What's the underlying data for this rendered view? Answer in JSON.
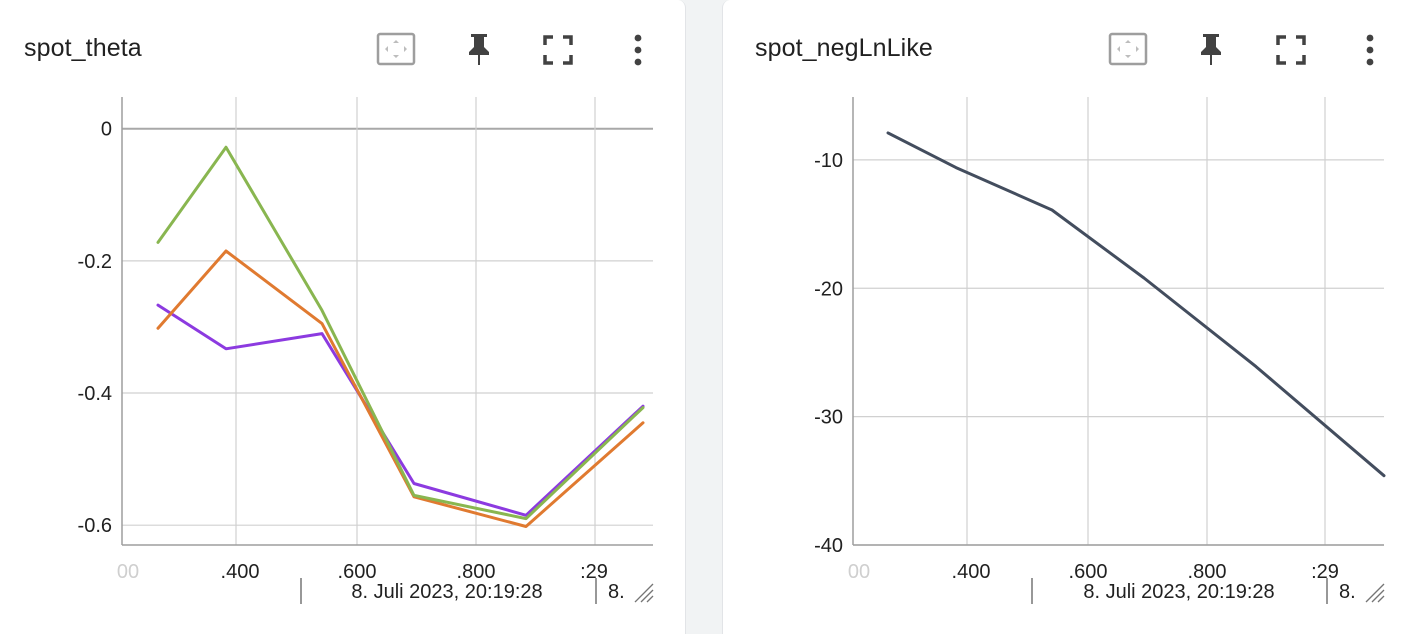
{
  "colors": {
    "grid": "#d0d0d0",
    "axis": "#9e9e9e",
    "zero_line": "#a8a8a8",
    "series_purple": "#8c3ae0",
    "series_orange": "#e07a30",
    "series_green": "#89b650",
    "series_dark": "#434d5e"
  },
  "icons": [
    "fit-domain-icon",
    "pin-icon",
    "fullscreen-icon",
    "more-vert-icon"
  ],
  "cards": [
    {
      "title": "spot_theta"
    },
    {
      "title": "spot_negLnLike"
    }
  ],
  "chart_data": [
    {
      "type": "line",
      "title": "spot_theta",
      "ylim": [
        -0.63,
        0.048
      ],
      "yticks": [
        0,
        -0.2,
        -0.4,
        -0.6
      ],
      "ytick_labels": [
        "0",
        "-0.2",
        "-0.4",
        "-0.6"
      ],
      "xtick_labels": [
        "00",
        ".400",
        ".600",
        ".800",
        ":29"
      ],
      "x_axis_secondary_label": "8. Juli 2023, 20:19:28",
      "x_axis_secondary_label_cut": "8.",
      "grid": true,
      "series": [
        {
          "color": "#8c3ae0",
          "x": [
            1,
            2,
            3,
            4,
            5,
            6
          ],
          "values": [
            -0.267,
            -0.333,
            -0.31,
            -0.537,
            -0.585,
            -0.42
          ]
        },
        {
          "color": "#e07a30",
          "x": [
            1,
            2,
            3,
            4,
            5,
            6
          ],
          "values": [
            -0.302,
            -0.185,
            -0.295,
            -0.557,
            -0.602,
            -0.445
          ]
        },
        {
          "color": "#89b650",
          "x": [
            1,
            2,
            3,
            4,
            5,
            6
          ],
          "values": [
            -0.172,
            -0.028,
            -0.275,
            -0.555,
            -0.59,
            -0.422
          ]
        }
      ]
    },
    {
      "type": "line",
      "title": "spot_negLnLike",
      "ylim": [
        -40,
        -5.1
      ],
      "yticks": [
        -10,
        -20,
        -30,
        -40
      ],
      "ytick_labels": [
        "-10",
        "-20",
        "-30",
        "-40"
      ],
      "xtick_labels": [
        "00",
        ".400",
        ".600",
        ".800",
        ":29"
      ],
      "x_axis_secondary_label": "8. Juli 2023, 20:19:28",
      "x_axis_secondary_label_cut": "8.",
      "grid": true,
      "series": [
        {
          "color": "#434d5e",
          "x": [
            1,
            2,
            3,
            4,
            5,
            6
          ],
          "values": [
            -7.9,
            -10.6,
            -13.9,
            -19.2,
            -26.1,
            -34.6
          ]
        }
      ]
    }
  ]
}
